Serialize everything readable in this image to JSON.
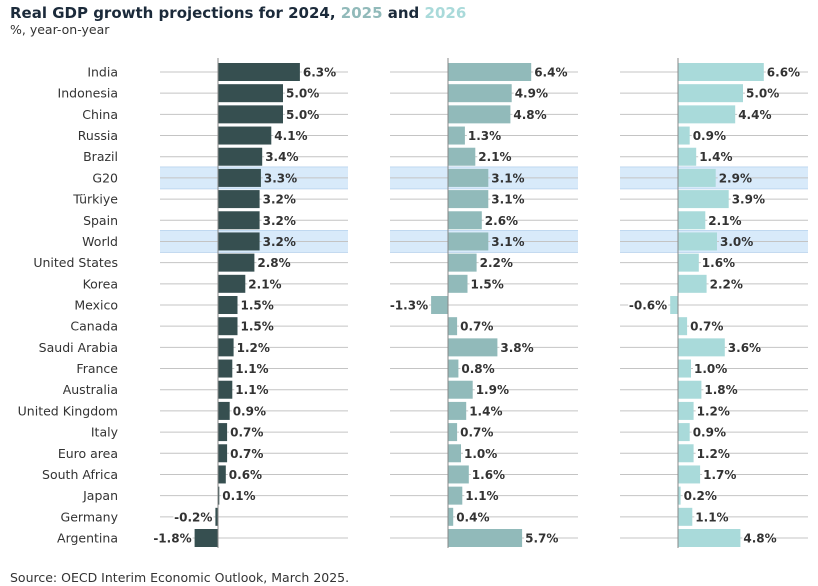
{
  "chart_data": {
    "type": "bar",
    "orientation": "horizontal",
    "title_parts": [
      "Real GDP growth projections for 2024, ",
      "2025",
      " and ",
      "2026"
    ],
    "subtitle": "%, year-on-year",
    "source": "Source: OECD Interim Economic Outlook, March 2025.",
    "categories": [
      "India",
      "Indonesia",
      "China",
      "Russia",
      "Brazil",
      "G20",
      "Türkiye",
      "Spain",
      "World",
      "United States",
      "Korea",
      "Mexico",
      "Canada",
      "Saudi Arabia",
      "France",
      "Australia",
      "United Kingdom",
      "Italy",
      "Euro area",
      "South Africa",
      "Japan",
      "Germany",
      "Argentina"
    ],
    "highlighted": [
      "G20",
      "World"
    ],
    "value_suffix": "%",
    "series": [
      {
        "name": "2024",
        "color": "#364f50",
        "values": [
          6.3,
          5.0,
          5.0,
          4.1,
          3.4,
          3.3,
          3.2,
          3.2,
          3.2,
          2.8,
          2.1,
          1.5,
          1.5,
          1.2,
          1.1,
          1.1,
          0.9,
          0.7,
          0.7,
          0.6,
          0.1,
          -0.2,
          -1.8
        ]
      },
      {
        "name": "2025",
        "color": "#91baba",
        "values": [
          6.4,
          4.9,
          4.8,
          1.3,
          2.1,
          3.1,
          3.1,
          2.6,
          3.1,
          2.2,
          1.5,
          -1.3,
          0.7,
          3.8,
          0.8,
          1.9,
          1.4,
          0.7,
          1.0,
          1.6,
          1.1,
          0.4,
          5.7
        ]
      },
      {
        "name": "2026",
        "color": "#a9dada",
        "values": [
          6.6,
          5.0,
          4.4,
          0.9,
          1.4,
          2.9,
          3.9,
          2.1,
          3.0,
          1.6,
          2.2,
          -0.6,
          0.7,
          3.6,
          1.0,
          1.8,
          1.2,
          0.9,
          1.2,
          1.7,
          0.2,
          1.1,
          4.8
        ]
      }
    ],
    "highlight_color": "#d8eafa",
    "grid": true
  }
}
